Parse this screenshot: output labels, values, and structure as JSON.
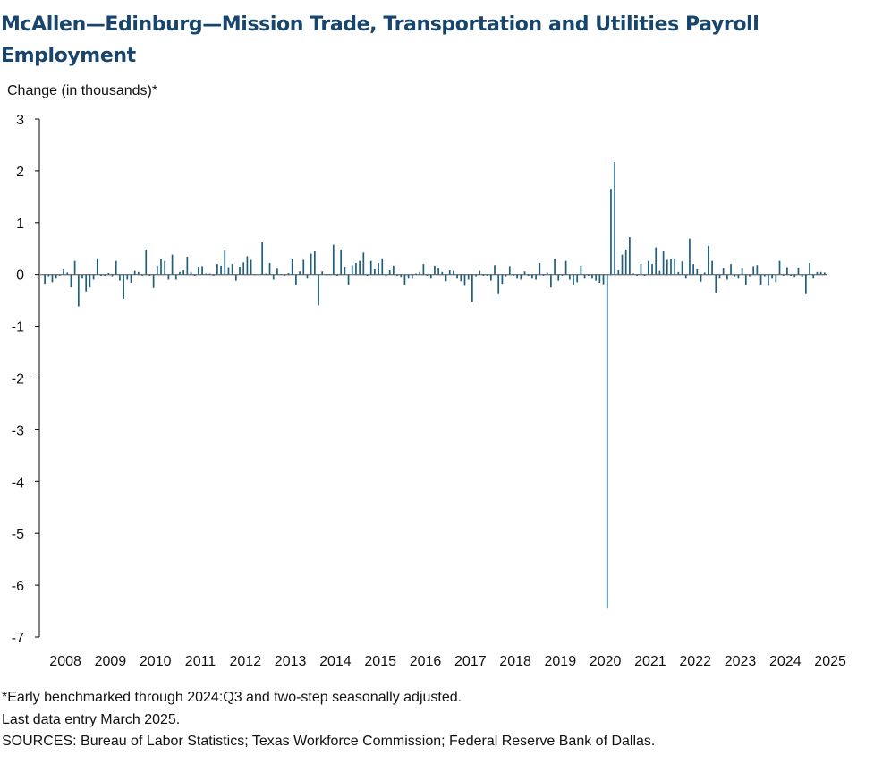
{
  "title": "McAllen—Edinburg—Mission Trade, Transportation and Utilities Payroll Employment",
  "notes": [
    "*Early benchmarked through 2024:Q3 and two-step seasonally adjusted.",
    "Last data entry March 2025.",
    "SOURCES: Bureau of Labor Statistics; Texas Workforce Commission; Federal Reserve Bank of Dallas."
  ],
  "colors": {
    "bar": "#1d5f7d",
    "title": "#17456b",
    "zero_line": "#7a7a7a",
    "axis": "#000000"
  },
  "chart_data": {
    "type": "bar",
    "ylabel": "Change (in thousands)*",
    "ylim": [
      -7,
      3
    ],
    "yticks": [
      3,
      2,
      1,
      0,
      -1,
      -2,
      -3,
      -4,
      -5,
      -6,
      -7
    ],
    "grid": false,
    "legend": "none",
    "x_tick_labels": [
      "2008",
      "2009",
      "2010",
      "2011",
      "2012",
      "2013",
      "2014",
      "2015",
      "2016",
      "2017",
      "2018",
      "2019",
      "2020",
      "2021",
      "2022",
      "2023",
      "2024",
      "2025"
    ],
    "x_start": "2008-01",
    "x_end": "2025-03",
    "frequency": "monthly",
    "values": [
      -0.18,
      -0.05,
      -0.15,
      -0.08,
      -0.02,
      0.1,
      0.04,
      -0.25,
      0.26,
      -0.62,
      -0.08,
      -0.33,
      -0.25,
      -0.1,
      0.31,
      -0.03,
      -0.03,
      0.03,
      -0.05,
      0.26,
      -0.12,
      -0.47,
      -0.1,
      -0.16,
      0.07,
      0.05,
      -0.02,
      0.48,
      -0.03,
      -0.26,
      0.17,
      0.3,
      0.26,
      -0.1,
      0.38,
      -0.1,
      0.05,
      0.08,
      0.34,
      0.05,
      -0.03,
      0.15,
      0.16,
      0.02,
      0.02,
      -0.02,
      0.2,
      0.17,
      0.48,
      0.14,
      0.2,
      -0.12,
      0.15,
      0.23,
      0.35,
      0.28,
      0.01,
      -0.01,
      0.62,
      0.02,
      0.22,
      -0.1,
      0.11,
      0.01,
      -0.02,
      0.03,
      0.29,
      -0.2,
      0.06,
      0.28,
      -0.08,
      0.4,
      0.46,
      -0.6,
      0.06,
      0.01,
      0.01,
      0.57,
      -0.03,
      0.48,
      0.15,
      -0.2,
      0.18,
      0.22,
      0.26,
      0.42,
      -0.04,
      0.26,
      0.1,
      0.22,
      0.31,
      -0.05,
      0.08,
      0.17,
      -0.02,
      -0.06,
      -0.2,
      -0.08,
      -0.08,
      0.02,
      0.05,
      0.2,
      -0.04,
      -0.08,
      0.17,
      0.12,
      0.05,
      -0.13,
      0.08,
      0.07,
      -0.08,
      -0.13,
      -0.22,
      -0.1,
      -0.53,
      -0.05,
      0.07,
      -0.03,
      -0.04,
      -0.12,
      0.18,
      -0.38,
      -0.18,
      -0.05,
      0.16,
      -0.04,
      -0.08,
      -0.1,
      0.06,
      -0.03,
      -0.08,
      -0.1,
      0.22,
      -0.04,
      0.04,
      -0.25,
      0.29,
      -0.12,
      -0.04,
      0.26,
      -0.1,
      -0.2,
      -0.15,
      0.17,
      -0.08,
      -0.03,
      -0.08,
      -0.12,
      -0.16,
      -0.19,
      -6.45,
      1.65,
      2.17,
      0.08,
      0.38,
      0.48,
      0.72,
      0.02,
      -0.04,
      0.2,
      -0.03,
      0.26,
      0.2,
      0.52,
      0.07,
      0.46,
      0.28,
      0.3,
      0.31,
      0.05,
      0.25,
      -0.08,
      0.69,
      0.2,
      0.1,
      -0.14,
      0.04,
      0.55,
      0.26,
      -0.35,
      -0.08,
      0.12,
      -0.1,
      0.2,
      -0.05,
      -0.08,
      0.12,
      -0.2,
      -0.05,
      0.16,
      0.18,
      -0.2,
      -0.05,
      -0.22,
      -0.08,
      -0.15,
      0.26,
      -0.02,
      0.14,
      -0.03,
      -0.06,
      0.13,
      -0.06,
      -0.38,
      0.22,
      -0.08,
      0.05,
      0.05,
      0.04
    ]
  }
}
